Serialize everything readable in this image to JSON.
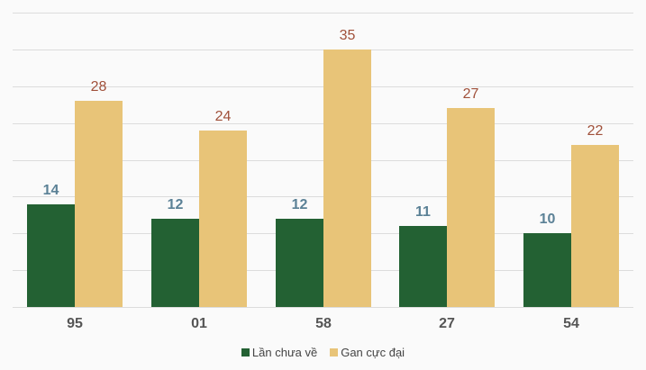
{
  "chart_data": {
    "type": "bar",
    "title": "",
    "xlabel": "",
    "ylabel": "",
    "categories": [
      "95",
      "01",
      "58",
      "27",
      "54"
    ],
    "series": [
      {
        "name": "Lần chưa về",
        "color": "#236133",
        "label_color": "#5b8196",
        "values": [
          14,
          12,
          12,
          11,
          10
        ]
      },
      {
        "name": "Gan cực đại",
        "color": "#e8c478",
        "label_color": "#a0503a",
        "values": [
          28,
          24,
          35,
          27,
          22
        ]
      }
    ],
    "ylim": [
      0,
      40
    ],
    "y_gridlines": [
      0,
      5,
      10,
      15,
      20,
      25,
      30,
      35,
      40
    ],
    "grid": true,
    "y_tick_labels_visible": false,
    "legend_position": "bottom"
  }
}
